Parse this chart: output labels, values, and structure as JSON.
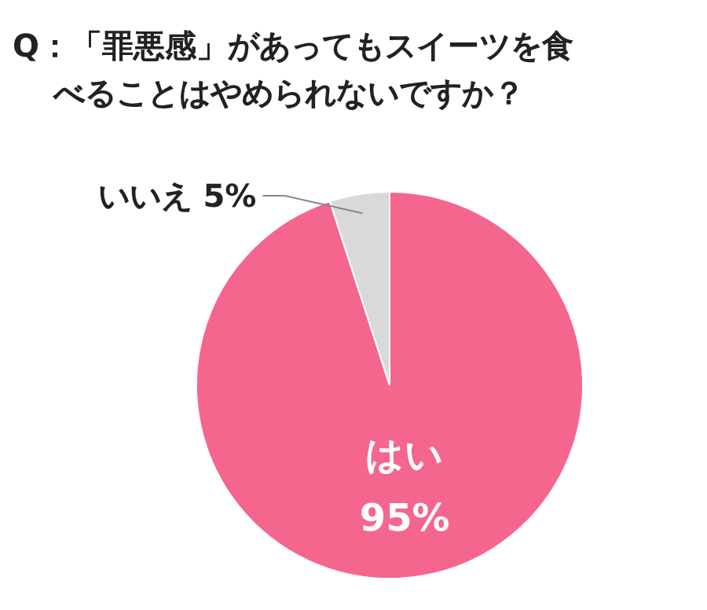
{
  "chart_data": {
    "type": "pie",
    "title": "Q：「罪悪感」があってもスイーツを食べることはやめられないですか？",
    "categories": [
      "はい",
      "いいえ"
    ],
    "values": [
      95,
      5
    ],
    "colors": [
      "#f5668f",
      "#d9d9d9"
    ],
    "value_labels": [
      "95%",
      "5%"
    ],
    "legend": false
  }
}
